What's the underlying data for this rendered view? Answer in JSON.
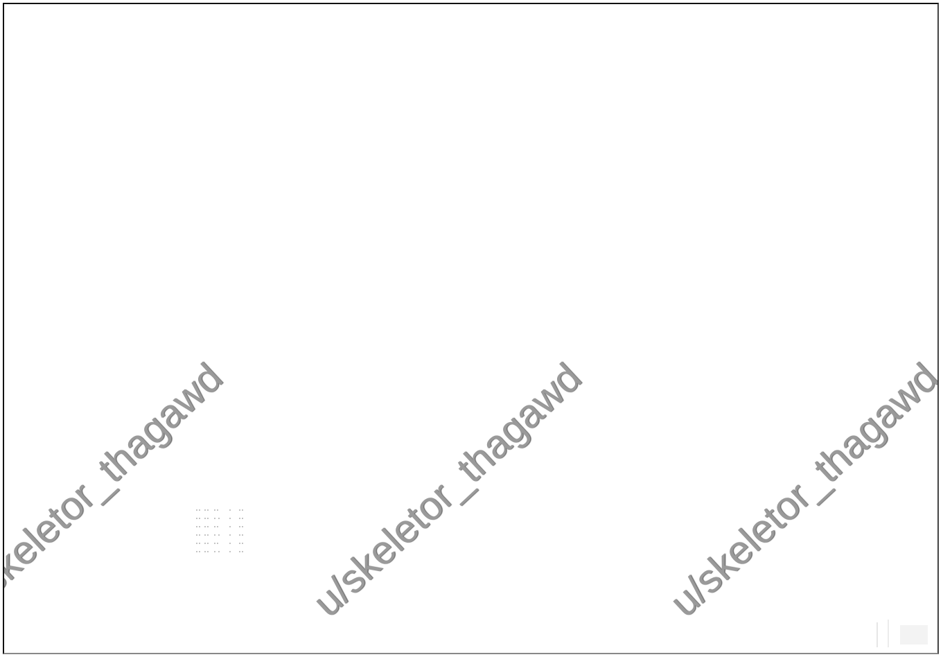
{
  "watermarks": [
    {
      "text": "u/skeletor_thagawd"
    },
    {
      "text": "u/skeletor_thagawd"
    },
    {
      "text": "u/skeletor_thagawd"
    }
  ],
  "colors": {
    "background": "#ffffff",
    "frame_border": "#111111",
    "watermark_text": "#9a9a9a"
  }
}
